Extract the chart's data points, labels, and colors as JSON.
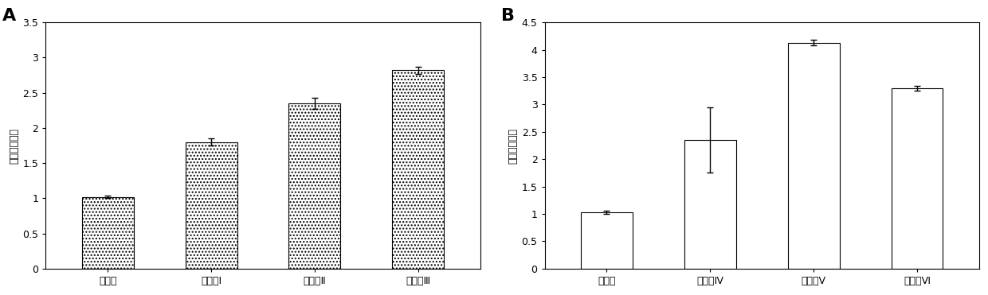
{
  "panel_A": {
    "categories": [
      "对照组",
      "实验组Ⅰ",
      "实验组Ⅱ",
      "实验组Ⅲ"
    ],
    "values": [
      1.02,
      1.8,
      2.35,
      2.82
    ],
    "errors": [
      0.02,
      0.05,
      0.08,
      0.05
    ],
    "ylabel": "端粒相对长度",
    "ylim": [
      0,
      3.5
    ],
    "yticks": [
      0,
      0.5,
      1.0,
      1.5,
      2.0,
      2.5,
      3.0,
      3.5
    ],
    "label": "A"
  },
  "panel_B": {
    "categories": [
      "对照组",
      "实验组Ⅳ",
      "实验组Ⅴ",
      "实验组Ⅵ"
    ],
    "values": [
      1.03,
      2.35,
      4.13,
      3.3
    ],
    "errors": [
      0.03,
      0.6,
      0.05,
      0.04
    ],
    "ylabel": "端粒相对长度",
    "ylim": [
      0,
      4.5
    ],
    "yticks": [
      0,
      0.5,
      1.0,
      1.5,
      2.0,
      2.5,
      3.0,
      3.5,
      4.0,
      4.5
    ],
    "label": "B"
  },
  "background_color": "#ffffff",
  "bar_edgecolor": "#000000",
  "error_color": "#000000",
  "label_fontsize": 16,
  "tick_fontsize": 9,
  "ylabel_fontsize": 9,
  "xlabel_fontsize": 9,
  "bar_width": 0.5
}
